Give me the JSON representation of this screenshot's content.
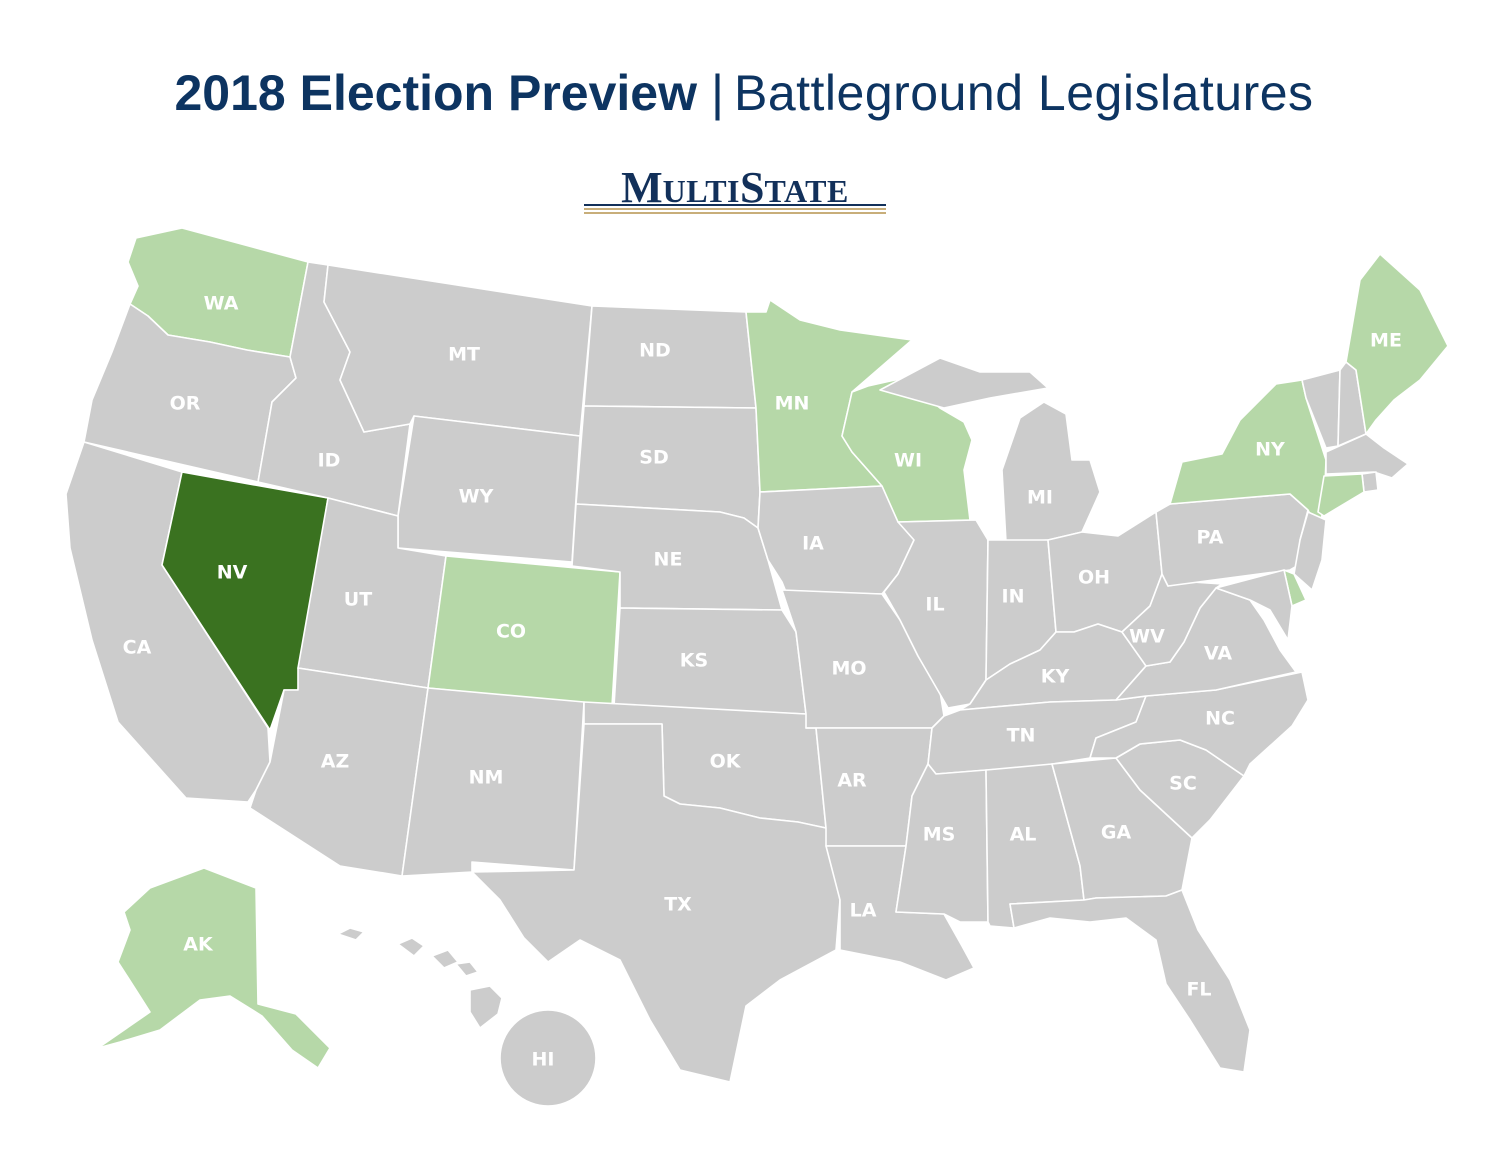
{
  "header": {
    "title_bold": "2018 Election Preview",
    "separator": "|",
    "title_light": "Battleground Legislatures"
  },
  "logo": {
    "text_big_1": "M",
    "text_small_1": "ULTI",
    "text_big_2": "S",
    "text_small_2": "TATE"
  },
  "colors": {
    "default_state": "#cccccc",
    "battleground_light": "#b6d8a8",
    "battleground_dark": "#3a7220",
    "title": "#0d3461",
    "logo_navy": "#12305a",
    "logo_gold": "#c8ae7a"
  },
  "states": [
    {
      "abbr": "WA",
      "status": "light"
    },
    {
      "abbr": "OR",
      "status": "default"
    },
    {
      "abbr": "CA",
      "status": "default"
    },
    {
      "abbr": "NV",
      "status": "dark"
    },
    {
      "abbr": "ID",
      "status": "default"
    },
    {
      "abbr": "MT",
      "status": "default"
    },
    {
      "abbr": "WY",
      "status": "default"
    },
    {
      "abbr": "UT",
      "status": "default"
    },
    {
      "abbr": "AZ",
      "status": "default"
    },
    {
      "abbr": "CO",
      "status": "light"
    },
    {
      "abbr": "NM",
      "status": "default"
    },
    {
      "abbr": "ND",
      "status": "default"
    },
    {
      "abbr": "SD",
      "status": "default"
    },
    {
      "abbr": "NE",
      "status": "default"
    },
    {
      "abbr": "KS",
      "status": "default"
    },
    {
      "abbr": "OK",
      "status": "default"
    },
    {
      "abbr": "TX",
      "status": "default"
    },
    {
      "abbr": "MN",
      "status": "light"
    },
    {
      "abbr": "IA",
      "status": "default"
    },
    {
      "abbr": "MO",
      "status": "default"
    },
    {
      "abbr": "AR",
      "status": "default"
    },
    {
      "abbr": "LA",
      "status": "default"
    },
    {
      "abbr": "WI",
      "status": "light"
    },
    {
      "abbr": "IL",
      "status": "default"
    },
    {
      "abbr": "MI",
      "status": "default"
    },
    {
      "abbr": "IN",
      "status": "default"
    },
    {
      "abbr": "OH",
      "status": "default"
    },
    {
      "abbr": "KY",
      "status": "default"
    },
    {
      "abbr": "TN",
      "status": "default"
    },
    {
      "abbr": "MS",
      "status": "default"
    },
    {
      "abbr": "AL",
      "status": "default"
    },
    {
      "abbr": "GA",
      "status": "default"
    },
    {
      "abbr": "FL",
      "status": "default"
    },
    {
      "abbr": "SC",
      "status": "default"
    },
    {
      "abbr": "NC",
      "status": "default"
    },
    {
      "abbr": "VA",
      "status": "default"
    },
    {
      "abbr": "WV",
      "status": "default"
    },
    {
      "abbr": "PA",
      "status": "default"
    },
    {
      "abbr": "NY",
      "status": "light"
    },
    {
      "abbr": "VT",
      "status": "default"
    },
    {
      "abbr": "NH",
      "status": "default"
    },
    {
      "abbr": "ME",
      "status": "light"
    },
    {
      "abbr": "MA",
      "status": "default"
    },
    {
      "abbr": "RI",
      "status": "default"
    },
    {
      "abbr": "CT",
      "status": "light"
    },
    {
      "abbr": "NJ",
      "status": "default"
    },
    {
      "abbr": "DE",
      "status": "light"
    },
    {
      "abbr": "MD",
      "status": "default"
    },
    {
      "abbr": "AK",
      "status": "light"
    },
    {
      "abbr": "HI",
      "status": "default"
    }
  ],
  "labels": [
    "WA",
    "OR",
    "CA",
    "NV",
    "ID",
    "MT",
    "WY",
    "UT",
    "AZ",
    "CO",
    "NM",
    "ND",
    "SD",
    "NE",
    "KS",
    "OK",
    "TX",
    "MN",
    "IA",
    "MO",
    "AR",
    "LA",
    "WI",
    "IL",
    "MI",
    "IN",
    "OH",
    "KY",
    "TN",
    "MS",
    "AL",
    "GA",
    "FL",
    "SC",
    "NC",
    "VA",
    "WV",
    "PA",
    "NY",
    "ME",
    "AK",
    "HI"
  ]
}
